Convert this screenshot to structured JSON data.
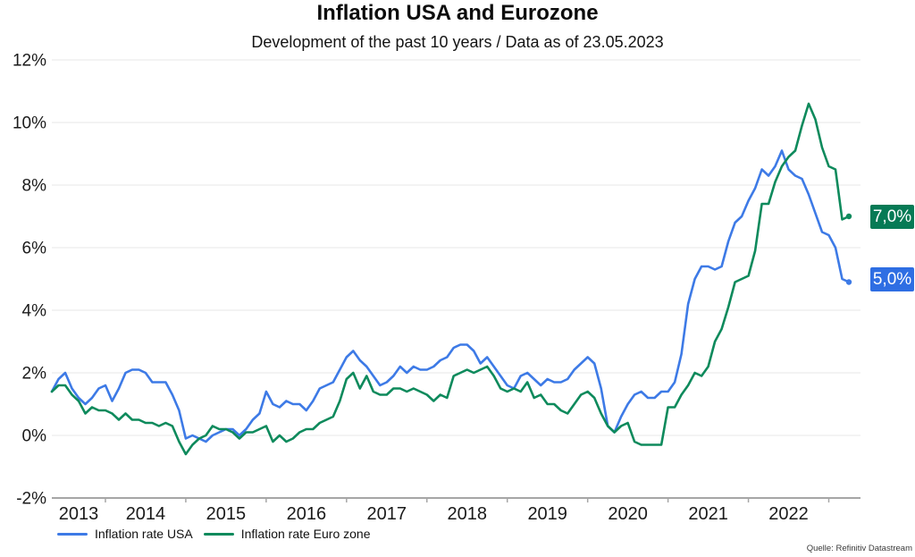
{
  "header": {
    "title": "Inflation USA and Eurozone",
    "subtitle": "Development of the past 10 years / Data as of 23.05.2023"
  },
  "source": "Quelle: Refinitiv Datastream",
  "legend": [
    {
      "label": "Inflation rate USA",
      "color": "#3d7ae6"
    },
    {
      "label": "Inflation rate Euro zone",
      "color": "#0e8a5c"
    }
  ],
  "chart_data": {
    "type": "line",
    "title": "Inflation USA and Eurozone",
    "subtitle": "Development of the past 10 years / Data as of 23.05.2023",
    "frequency": "monthly",
    "x_start": "2013-05",
    "x_end": "2023-04",
    "x_tick_labels": [
      "2013",
      "2014",
      "2015",
      "2016",
      "2017",
      "2018",
      "2019",
      "2020",
      "2021",
      "2022"
    ],
    "ylim": [
      -2,
      12
    ],
    "y_ticks": [
      -2,
      0,
      2,
      4,
      6,
      8,
      10,
      12
    ],
    "y_tick_suffix": "%",
    "grid": "horizontal",
    "legend_position": "bottom-left",
    "series": [
      {
        "key": "usa",
        "name": "Inflation rate USA",
        "color": "#3d7ae6",
        "badge_color": "#2e6ee3",
        "end_label": "5,0%",
        "end_value": 5.0,
        "values": [
          1.4,
          1.8,
          2.0,
          1.5,
          1.2,
          1.0,
          1.2,
          1.5,
          1.6,
          1.1,
          1.5,
          2.0,
          2.1,
          2.1,
          2.0,
          1.7,
          1.7,
          1.7,
          1.3,
          0.8,
          -0.1,
          0.0,
          -0.1,
          -0.2,
          0.0,
          0.1,
          0.2,
          0.2,
          0.0,
          0.2,
          0.5,
          0.7,
          1.4,
          1.0,
          0.9,
          1.1,
          1.0,
          1.0,
          0.8,
          1.1,
          1.5,
          1.6,
          1.7,
          2.1,
          2.5,
          2.7,
          2.4,
          2.2,
          1.9,
          1.6,
          1.7,
          1.9,
          2.2,
          2.0,
          2.2,
          2.1,
          2.1,
          2.2,
          2.4,
          2.5,
          2.8,
          2.9,
          2.9,
          2.7,
          2.3,
          2.5,
          2.2,
          1.9,
          1.6,
          1.5,
          1.9,
          2.0,
          1.8,
          1.6,
          1.8,
          1.7,
          1.7,
          1.8,
          2.1,
          2.3,
          2.5,
          2.3,
          1.5,
          0.3,
          0.1,
          0.6,
          1.0,
          1.3,
          1.4,
          1.2,
          1.2,
          1.4,
          1.4,
          1.7,
          2.6,
          4.2,
          5.0,
          5.4,
          5.4,
          5.3,
          5.4,
          6.2,
          6.8,
          7.0,
          7.5,
          7.9,
          8.5,
          8.3,
          8.6,
          9.1,
          8.5,
          8.3,
          8.2,
          7.7,
          7.1,
          6.5,
          6.4,
          6.0,
          5.0,
          4.9
        ]
      },
      {
        "key": "eurozone",
        "name": "Inflation rate Euro zone",
        "color": "#0e8a5c",
        "badge_color": "#067a55",
        "end_label": "7,0%",
        "end_value": 7.0,
        "values": [
          1.4,
          1.6,
          1.6,
          1.3,
          1.1,
          0.7,
          0.9,
          0.8,
          0.8,
          0.7,
          0.5,
          0.7,
          0.5,
          0.5,
          0.4,
          0.4,
          0.3,
          0.4,
          0.3,
          -0.2,
          -0.6,
          -0.3,
          -0.1,
          0.0,
          0.3,
          0.2,
          0.2,
          0.1,
          -0.1,
          0.1,
          0.1,
          0.2,
          0.3,
          -0.2,
          0.0,
          -0.2,
          -0.1,
          0.1,
          0.2,
          0.2,
          0.4,
          0.5,
          0.6,
          1.1,
          1.8,
          2.0,
          1.5,
          1.9,
          1.4,
          1.3,
          1.3,
          1.5,
          1.5,
          1.4,
          1.5,
          1.4,
          1.3,
          1.1,
          1.3,
          1.2,
          1.9,
          2.0,
          2.1,
          2.0,
          2.1,
          2.2,
          1.9,
          1.5,
          1.4,
          1.5,
          1.4,
          1.7,
          1.2,
          1.3,
          1.0,
          1.0,
          0.8,
          0.7,
          1.0,
          1.3,
          1.4,
          1.2,
          0.7,
          0.3,
          0.1,
          0.3,
          0.4,
          -0.2,
          -0.3,
          -0.3,
          -0.3,
          -0.3,
          0.9,
          0.9,
          1.3,
          1.6,
          2.0,
          1.9,
          2.2,
          3.0,
          3.4,
          4.1,
          4.9,
          5.0,
          5.1,
          5.9,
          7.4,
          7.4,
          8.1,
          8.6,
          8.9,
          9.1,
          9.9,
          10.6,
          10.1,
          9.2,
          8.6,
          8.5,
          6.9,
          7.0
        ]
      }
    ]
  }
}
